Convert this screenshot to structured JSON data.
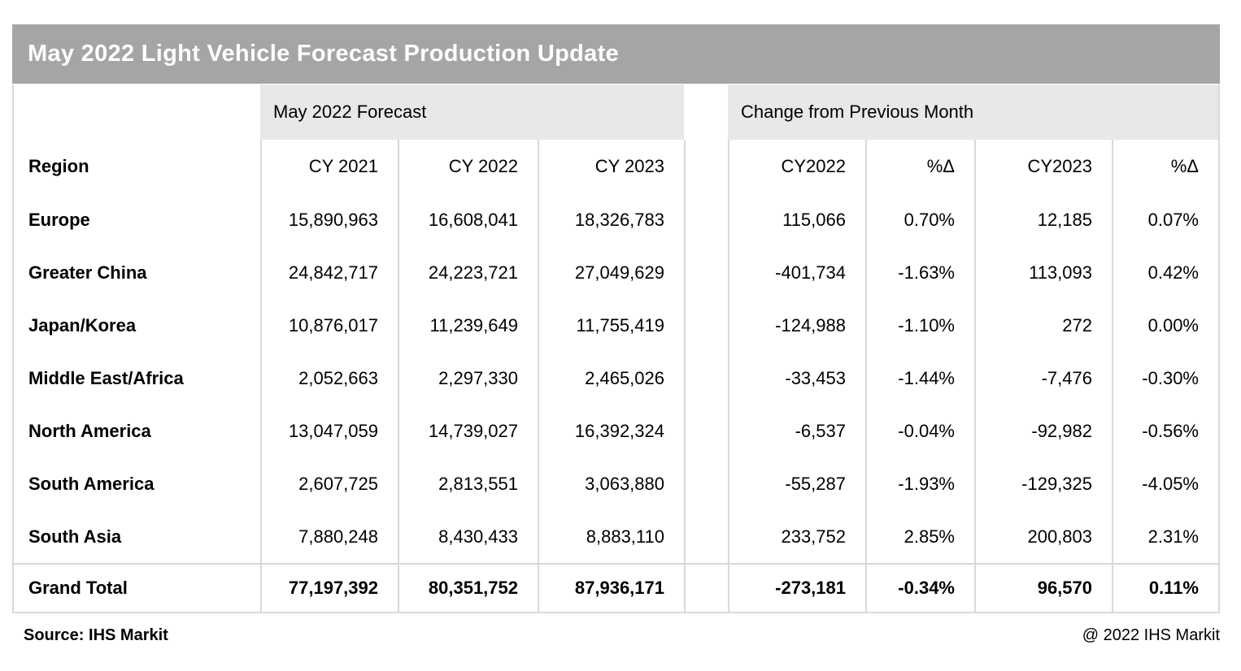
{
  "title": "May 2022 Light Vehicle Forecast Production Update",
  "sections": {
    "forecast": "May 2022 Forecast",
    "change": "Change from Previous Month"
  },
  "columns": {
    "region": "Region",
    "cy2021": "CY 2021",
    "cy2022": "CY 2022",
    "cy2023": "CY 2023",
    "chg_cy2022": "CY2022",
    "chg_pct_2022": "%Δ",
    "chg_cy2023": "CY2023",
    "chg_pct_2023": "%Δ"
  },
  "rows": [
    {
      "region": "Europe",
      "cy2021": "15,890,963",
      "cy2022": "16,608,041",
      "cy2023": "18,326,783",
      "chg_cy2022": "115,066",
      "chg_pct_2022": "0.70%",
      "chg_cy2023": "12,185",
      "chg_pct_2023": "0.07%"
    },
    {
      "region": "Greater China",
      "cy2021": "24,842,717",
      "cy2022": "24,223,721",
      "cy2023": "27,049,629",
      "chg_cy2022": "-401,734",
      "chg_pct_2022": "-1.63%",
      "chg_cy2023": "113,093",
      "chg_pct_2023": "0.42%"
    },
    {
      "region": "Japan/Korea",
      "cy2021": "10,876,017",
      "cy2022": "11,239,649",
      "cy2023": "11,755,419",
      "chg_cy2022": "-124,988",
      "chg_pct_2022": "-1.10%",
      "chg_cy2023": "272",
      "chg_pct_2023": "0.00%"
    },
    {
      "region": "Middle East/Africa",
      "cy2021": "2,052,663",
      "cy2022": "2,297,330",
      "cy2023": "2,465,026",
      "chg_cy2022": "-33,453",
      "chg_pct_2022": "-1.44%",
      "chg_cy2023": "-7,476",
      "chg_pct_2023": "-0.30%"
    },
    {
      "region": "North America",
      "cy2021": "13,047,059",
      "cy2022": "14,739,027",
      "cy2023": "16,392,324",
      "chg_cy2022": "-6,537",
      "chg_pct_2022": "-0.04%",
      "chg_cy2023": "-92,982",
      "chg_pct_2023": "-0.56%"
    },
    {
      "region": "South America",
      "cy2021": "2,607,725",
      "cy2022": "2,813,551",
      "cy2023": "3,063,880",
      "chg_cy2022": "-55,287",
      "chg_pct_2022": "-1.93%",
      "chg_cy2023": "-129,325",
      "chg_pct_2023": "-4.05%"
    },
    {
      "region": "South Asia",
      "cy2021": "7,880,248",
      "cy2022": "8,430,433",
      "cy2023": "8,883,110",
      "chg_cy2022": "233,752",
      "chg_pct_2022": "2.85%",
      "chg_cy2023": "200,803",
      "chg_pct_2023": "2.31%"
    }
  ],
  "grand_total": {
    "region": "Grand Total",
    "cy2021": "77,197,392",
    "cy2022": "80,351,752",
    "cy2023": "87,936,171",
    "chg_cy2022": "-273,181",
    "chg_pct_2022": "-0.34%",
    "chg_cy2023": "96,570",
    "chg_pct_2023": "0.11%"
  },
  "footer": {
    "source": "Source: IHS Markit",
    "copyright": "@ 2022 IHS Markit"
  },
  "colors": {
    "title_bar": "#a5a5a5",
    "section_band": "#e8e8e8",
    "grid_line": "#d9d9d9"
  }
}
